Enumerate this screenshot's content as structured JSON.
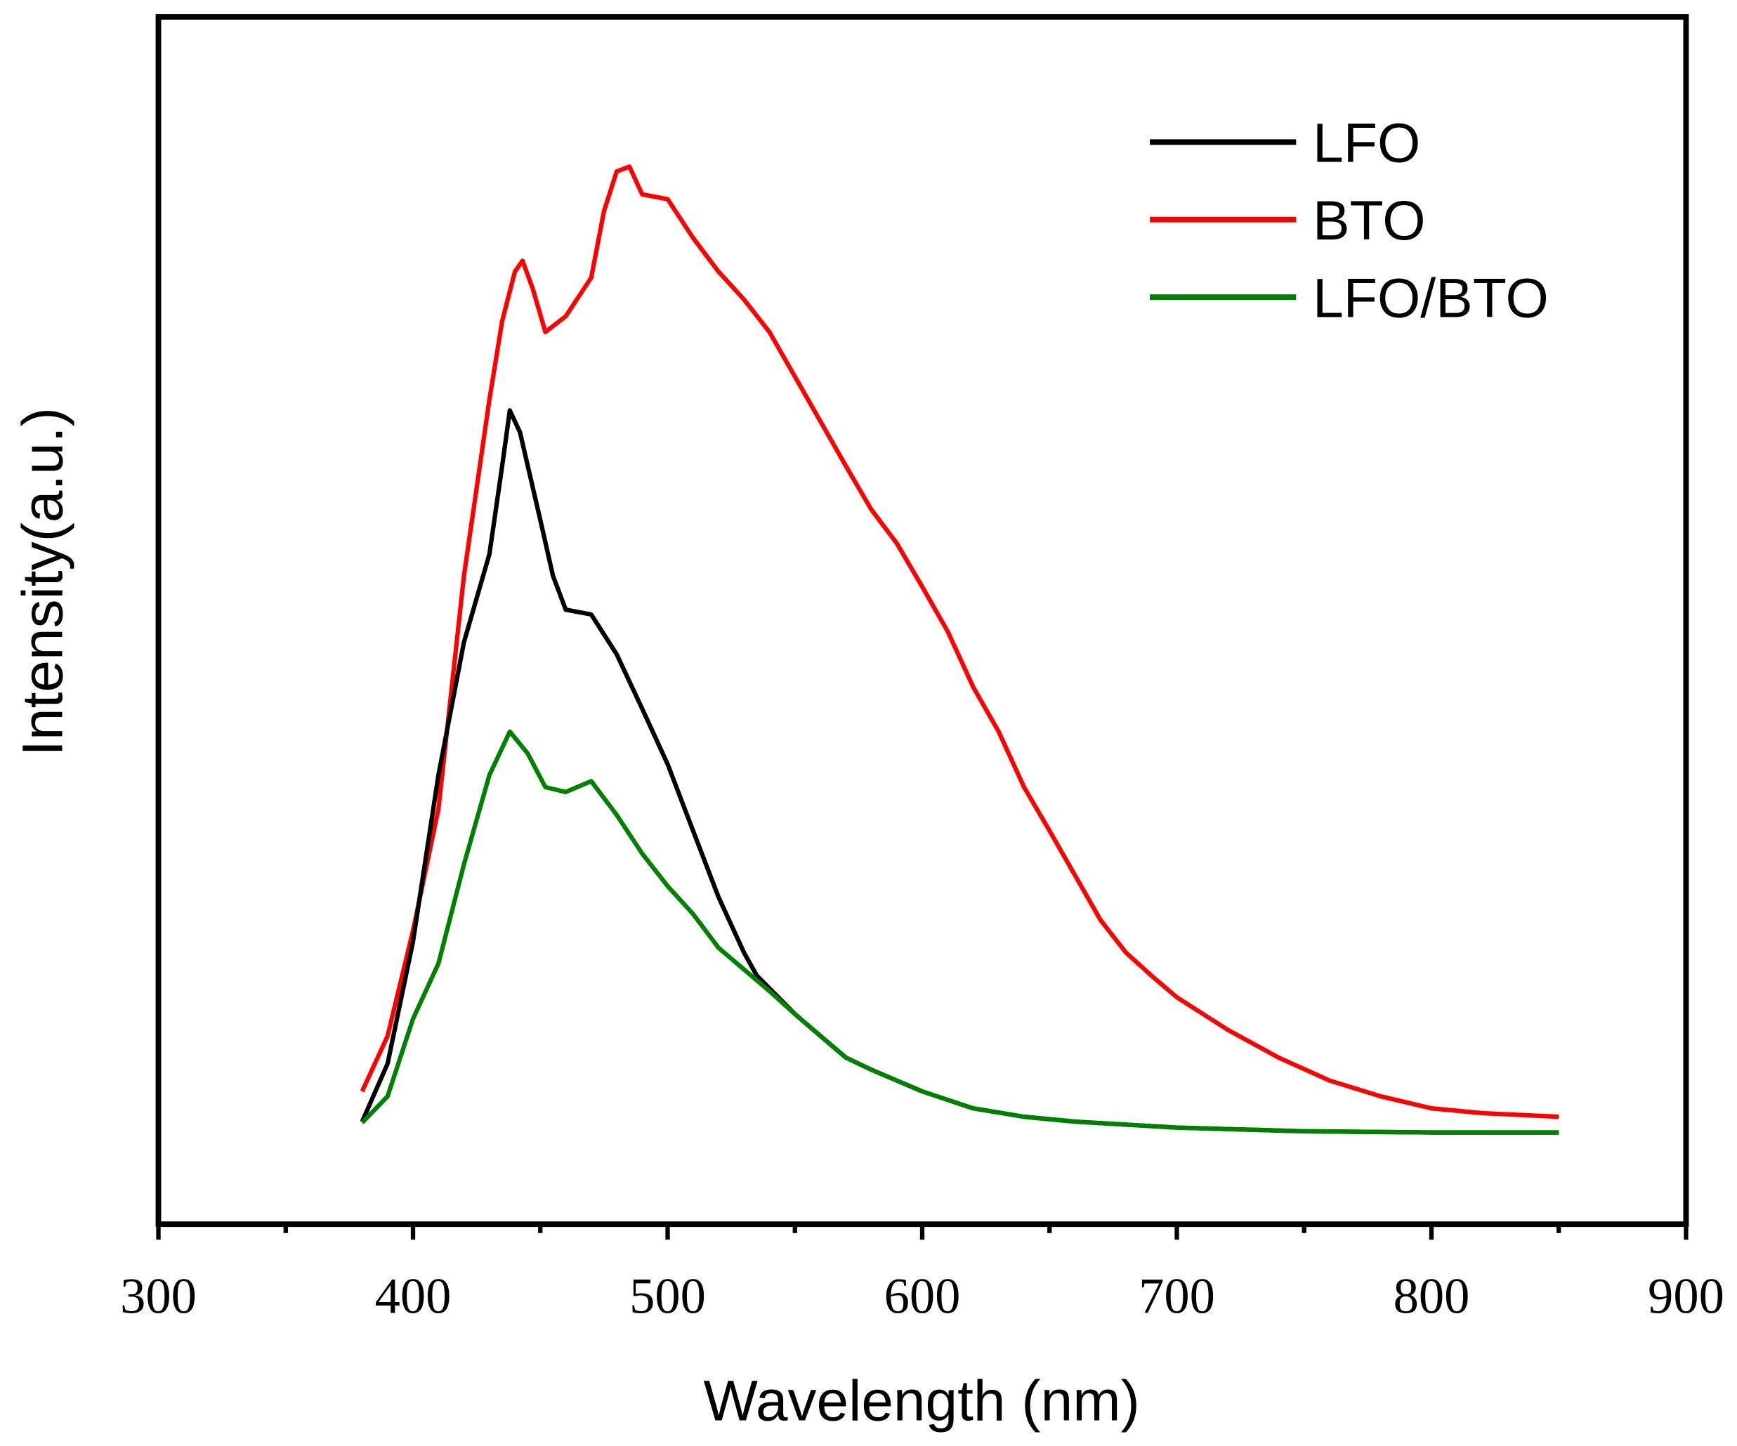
{
  "chart_data": {
    "type": "line",
    "title": "",
    "xlabel": "Wavelength (nm)",
    "ylabel": "Intensity(a.u.)",
    "xlim": [
      300,
      900
    ],
    "ylim": [
      0,
      100
    ],
    "xticks": [
      300,
      400,
      500,
      600,
      700,
      800,
      900
    ],
    "xticks_minor": [
      350,
      450,
      550,
      650,
      750,
      850
    ],
    "yticks_shown": false,
    "grid": false,
    "legend_position": "top-right",
    "series": [
      {
        "name": "LFO",
        "color": "#000000",
        "x": [
          380,
          390,
          400,
          410,
          420,
          430,
          435,
          438,
          442,
          450,
          455,
          460,
          470,
          480,
          490,
          500,
          510,
          520,
          530,
          535,
          550,
          560,
          570,
          580,
          600,
          620,
          640,
          660,
          700,
          750,
          800,
          850
        ],
        "y": [
          8.5,
          13.3,
          23.4,
          37.2,
          48.2,
          55.5,
          62.8,
          67.4,
          65.6,
          58.3,
          53.7,
          50.9,
          50.5,
          47.2,
          42.7,
          38.1,
          32.6,
          27.1,
          22.5,
          20.6,
          17.4,
          15.6,
          13.8,
          12.8,
          11.0,
          9.6,
          8.9,
          8.5,
          8.0,
          7.7,
          7.6,
          7.6
        ]
      },
      {
        "name": "BTO",
        "color": "#ff0000",
        "x": [
          380,
          390,
          400,
          410,
          420,
          430,
          435,
          440,
          443,
          447,
          452,
          460,
          470,
          475,
          480,
          485,
          490,
          500,
          510,
          520,
          530,
          540,
          550,
          560,
          570,
          580,
          590,
          600,
          610,
          620,
          630,
          640,
          650,
          660,
          670,
          680,
          690,
          700,
          720,
          740,
          760,
          780,
          800,
          820,
          850
        ],
        "y": [
          11.0,
          15.6,
          24.3,
          34.4,
          53.7,
          68.3,
          74.8,
          78.9,
          79.8,
          77.5,
          73.9,
          75.2,
          78.4,
          83.9,
          87.2,
          87.6,
          85.3,
          84.9,
          81.7,
          78.9,
          76.6,
          73.9,
          70.2,
          66.5,
          62.8,
          59.2,
          56.4,
          52.8,
          49.1,
          44.5,
          40.8,
          36.2,
          32.6,
          28.9,
          25.2,
          22.5,
          20.6,
          18.8,
          16.1,
          13.8,
          11.9,
          10.6,
          9.6,
          9.2,
          8.9
        ]
      },
      {
        "name": "LFO/BTO",
        "color": "#008000",
        "x": [
          380,
          390,
          400,
          410,
          420,
          430,
          438,
          445,
          452,
          460,
          470,
          480,
          490,
          500,
          510,
          520,
          530,
          540,
          550,
          560,
          570,
          580,
          600,
          620,
          640,
          660,
          700,
          750,
          800,
          850
        ],
        "y": [
          8.4,
          10.6,
          17.0,
          21.6,
          29.8,
          37.2,
          40.8,
          39.0,
          36.2,
          35.8,
          36.7,
          33.9,
          30.7,
          28.0,
          25.7,
          22.9,
          21.1,
          19.3,
          17.4,
          15.6,
          13.8,
          12.8,
          11.0,
          9.6,
          8.9,
          8.5,
          8.0,
          7.7,
          7.6,
          7.6
        ]
      }
    ]
  }
}
